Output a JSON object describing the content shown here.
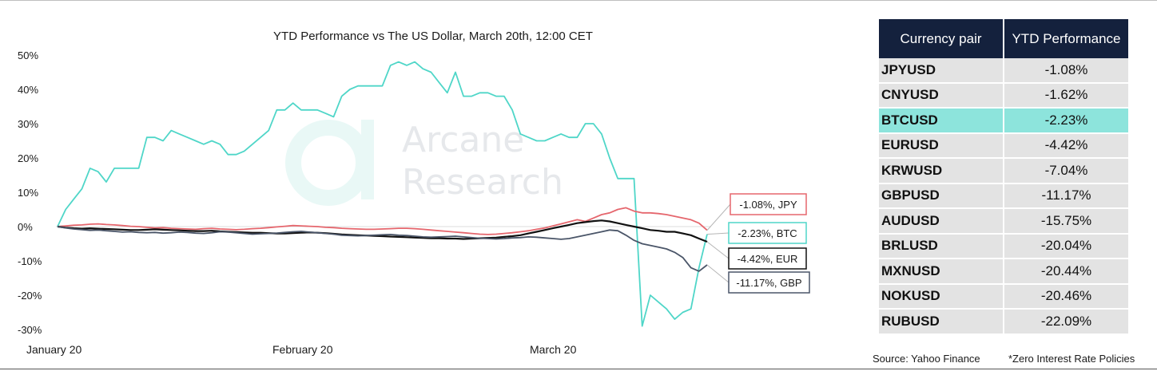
{
  "chart_data": {
    "type": "line",
    "title": "YTD Performance vs The US Dollar, March 20th, 12:00 CET",
    "xlabel": "",
    "ylabel": "",
    "x_ticks": [
      "January 20",
      "February 20",
      "March 20"
    ],
    "y_ticks": [
      "50%",
      "40%",
      "30%",
      "20%",
      "10%",
      "0%",
      "-10%",
      "-20%",
      "-30%"
    ],
    "ylim": [
      -30,
      50
    ],
    "y_unit": "%",
    "grid": false,
    "watermark": {
      "line1": "Arcane",
      "line2": "Research"
    },
    "series": [
      {
        "name": "BTC",
        "label": "-2.23%, BTC",
        "color": "#4fd6c8",
        "values": [
          0,
          5,
          8,
          11,
          17,
          16,
          13,
          17,
          17,
          17,
          17,
          26,
          26,
          25,
          28,
          27,
          26,
          25,
          24,
          25,
          24,
          21,
          21,
          22,
          24,
          26,
          28,
          34,
          34,
          36,
          34,
          34,
          34,
          33,
          32,
          38,
          40,
          41,
          41,
          41,
          41,
          47,
          48,
          47,
          48,
          46,
          45,
          42,
          39,
          45,
          38,
          38,
          39,
          39,
          38,
          38,
          34,
          27,
          26,
          25,
          25,
          26,
          27,
          26,
          26,
          30,
          30,
          27,
          20,
          14,
          14,
          14,
          -29,
          -20,
          -22,
          -24,
          -27,
          -25,
          -24,
          -12,
          -2.23
        ]
      },
      {
        "name": "JPY",
        "label": "-1.08%, JPY",
        "color": "#e5666d",
        "values": [
          0,
          0.2,
          0.4,
          0.5,
          0.7,
          0.8,
          0.6,
          0.5,
          0.3,
          0.1,
          0,
          -0.2,
          -0.4,
          -0.3,
          -0.5,
          -0.6,
          -0.7,
          -0.8,
          -0.6,
          -0.5,
          -0.7,
          -0.8,
          -0.9,
          -0.8,
          -0.6,
          -0.5,
          -0.3,
          -0.1,
          0.1,
          0.3,
          0.2,
          0.1,
          0,
          -0.2,
          -0.3,
          -0.5,
          -0.6,
          -0.7,
          -0.8,
          -0.8,
          -0.7,
          -0.6,
          -0.5,
          -0.5,
          -0.6,
          -0.8,
          -1,
          -1.2,
          -1.4,
          -1.6,
          -1.8,
          -2,
          -2.2,
          -2.3,
          -2.2,
          -2,
          -1.8,
          -1.5,
          -1.2,
          -0.8,
          -0.4,
          0.2,
          0.8,
          1.4,
          2,
          1.5,
          2.5,
          3.5,
          4,
          5,
          5.5,
          4.5,
          4,
          4,
          3.8,
          3.5,
          3,
          2.5,
          2,
          1,
          -1.08
        ]
      },
      {
        "name": "EUR",
        "label": "-4.42%, EUR",
        "color": "#111111",
        "values": [
          0,
          -0.3,
          -0.5,
          -0.6,
          -0.5,
          -0.6,
          -0.7,
          -0.8,
          -0.9,
          -1,
          -1,
          -0.9,
          -0.8,
          -0.9,
          -1,
          -1.1,
          -1.2,
          -1.3,
          -1.3,
          -1.2,
          -1.4,
          -1.5,
          -1.6,
          -1.7,
          -1.8,
          -1.8,
          -1.9,
          -2,
          -2,
          -1.9,
          -1.8,
          -1.7,
          -1.8,
          -1.9,
          -2.1,
          -2.3,
          -2.4,
          -2.5,
          -2.6,
          -2.7,
          -2.8,
          -2.9,
          -3,
          -3.1,
          -3.2,
          -3.3,
          -3.4,
          -3.4,
          -3.5,
          -3.5,
          -3.6,
          -3.5,
          -3.4,
          -3.3,
          -3.2,
          -3,
          -2.8,
          -2.5,
          -2,
          -1.5,
          -1,
          -0.5,
          0,
          0.5,
          1,
          1.3,
          1.6,
          1.8,
          1.5,
          1,
          0.5,
          0,
          -0.5,
          -1,
          -1.2,
          -1.5,
          -1.5,
          -2,
          -2.5,
          -3.5,
          -4.42
        ]
      },
      {
        "name": "GBP",
        "label": "-11.17%, GBP",
        "color": "#4a5568",
        "values": [
          0,
          -0.4,
          -0.7,
          -0.9,
          -1.1,
          -1,
          -1.2,
          -1.4,
          -1.6,
          -1.5,
          -1.7,
          -1.8,
          -1.7,
          -1.9,
          -1.8,
          -1.6,
          -1.7,
          -1.9,
          -2,
          -1.8,
          -1.5,
          -1.6,
          -1.8,
          -2,
          -2.2,
          -2.1,
          -2,
          -1.9,
          -1.7,
          -1.5,
          -1.4,
          -1.6,
          -1.8,
          -2,
          -2.2,
          -2.5,
          -2.6,
          -2.7,
          -2.6,
          -2.5,
          -2.4,
          -2.3,
          -2.5,
          -2.6,
          -2.8,
          -3,
          -3.1,
          -3,
          -2.9,
          -2.8,
          -3,
          -3.2,
          -3.4,
          -3.5,
          -3.6,
          -3.5,
          -3.3,
          -3.2,
          -3,
          -3.1,
          -3.3,
          -3.5,
          -3.7,
          -3.5,
          -3,
          -2.5,
          -2,
          -1.5,
          -1,
          -1.2,
          -2.5,
          -4,
          -5,
          -5.5,
          -6,
          -6.5,
          -7.5,
          -9,
          -12,
          -13,
          -11.17
        ]
      }
    ]
  },
  "table": {
    "headers": [
      "Currency pair",
      "YTD Performance"
    ],
    "rows": [
      {
        "pair": "JPYUSD",
        "value": "-1.08%"
      },
      {
        "pair": "CNYUSD",
        "value": "-1.62%"
      },
      {
        "pair": "BTCUSD",
        "value": "-2.23%",
        "highlight": true,
        "highlight_color": "#8de4dc"
      },
      {
        "pair": "EURUSD",
        "value": "-4.42%"
      },
      {
        "pair": "KRWUSD",
        "value": "-7.04%"
      },
      {
        "pair": "GBPUSD",
        "value": "-11.17%"
      },
      {
        "pair": "AUDUSD",
        "value": "-15.75%"
      },
      {
        "pair": "BRLUSD",
        "value": "-20.04%"
      },
      {
        "pair": "MXNUSD",
        "value": "-20.44%"
      },
      {
        "pair": "NOKUSD",
        "value": "-20.46%"
      },
      {
        "pair": "RUBUSD",
        "value": "-22.09%"
      }
    ]
  },
  "footer": {
    "source": "Source: Yahoo Finance",
    "note": "*Zero Interest Rate Policies"
  },
  "colors": {
    "header_bg": "#14213d",
    "row_bg": "#e3e3e3",
    "zero_line": "#dcdcdc"
  }
}
